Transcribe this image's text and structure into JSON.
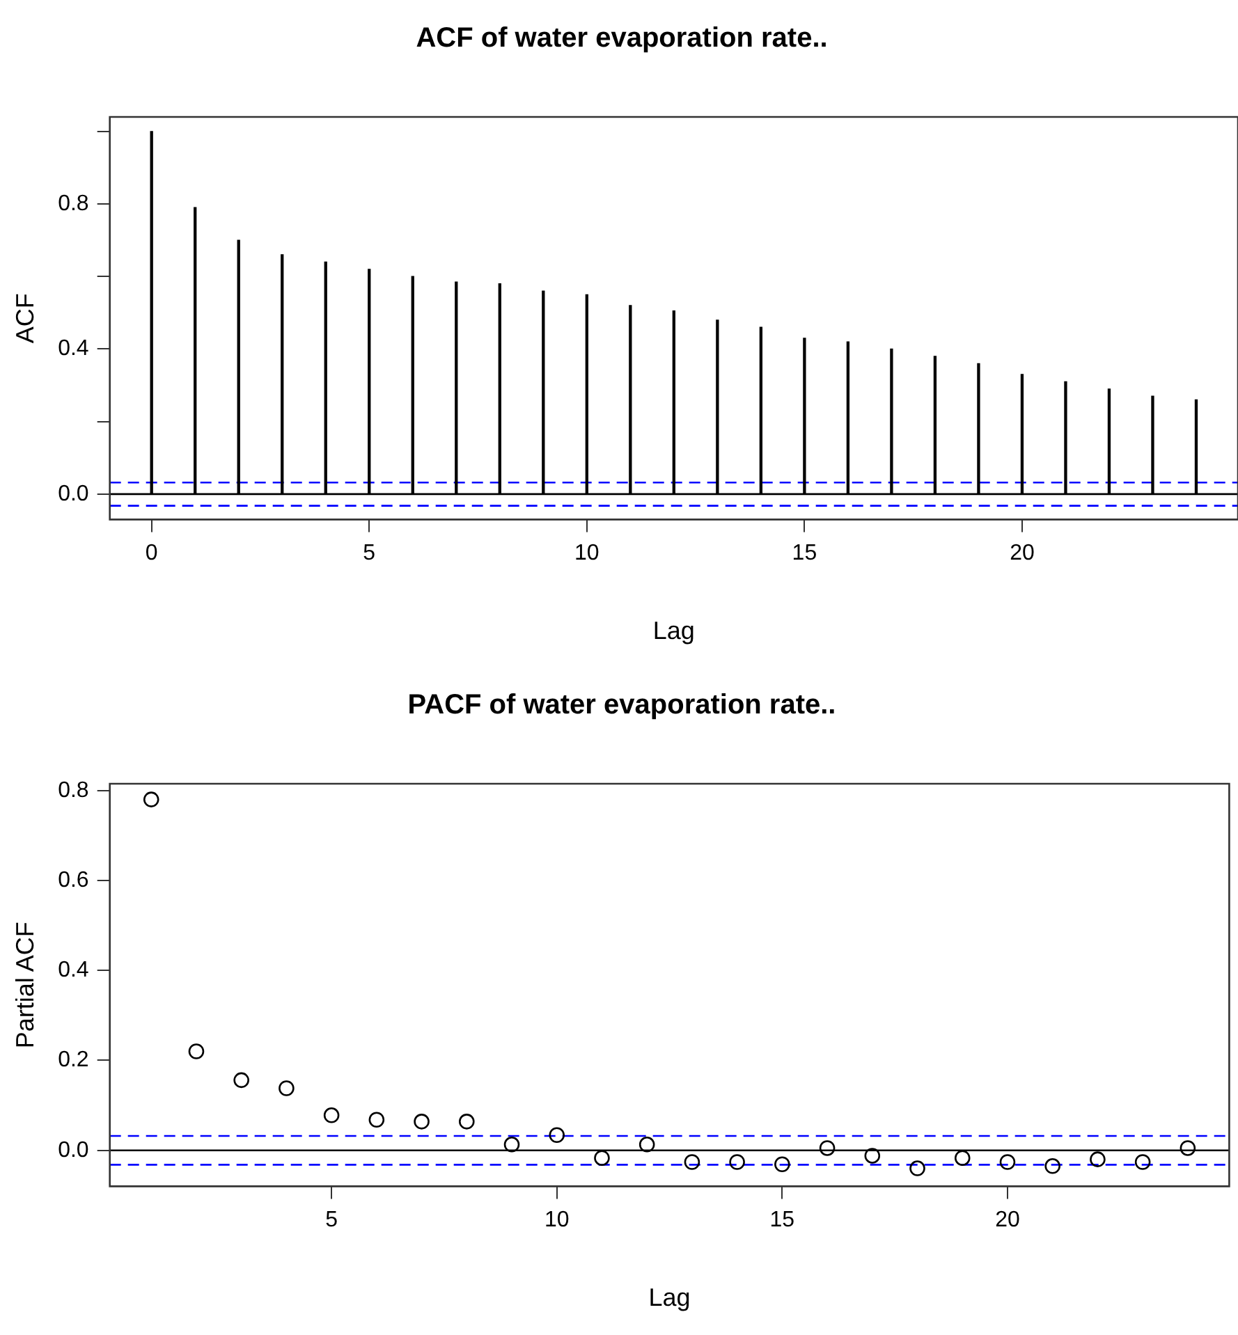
{
  "chart_data": [
    {
      "type": "bar",
      "title": "ACF of water evaporation rate..",
      "xlabel": "Lag",
      "ylabel": "ACF",
      "color": "#000000",
      "x": [
        0,
        1,
        2,
        3,
        4,
        5,
        6,
        7,
        8,
        9,
        10,
        11,
        12,
        13,
        14,
        15,
        16,
        17,
        18,
        19,
        20,
        21,
        22,
        23,
        24
      ],
      "values": [
        1.0,
        0.79,
        0.7,
        0.66,
        0.64,
        0.62,
        0.6,
        0.585,
        0.58,
        0.56,
        0.55,
        0.52,
        0.505,
        0.48,
        0.46,
        0.43,
        0.42,
        0.4,
        0.38,
        0.36,
        0.33,
        0.31,
        0.29,
        0.27,
        0.26
      ],
      "xlim": [
        -0.96,
        24.96
      ],
      "ylim": [
        -0.07,
        1.04
      ],
      "xticks": [
        0,
        5,
        10,
        15,
        20
      ],
      "yticks": [
        {
          "value": 0,
          "label": "0.0"
        },
        {
          "value": 0.2,
          "label": null
        },
        {
          "value": 0.4,
          "label": "0.4"
        },
        {
          "value": 0.6,
          "label": null
        },
        {
          "value": 0.8,
          "label": "0.8"
        },
        {
          "value": 1.0,
          "label": null
        }
      ],
      "ref_lines": [
        {
          "axis": "y",
          "value": 0,
          "color": "#000000",
          "line_style": "solid"
        },
        {
          "axis": "y",
          "value": 0.032,
          "color": "#0000ff",
          "line_style": "dashed"
        },
        {
          "axis": "y",
          "value": -0.032,
          "color": "#0000ff",
          "line_style": "dashed"
        }
      ],
      "grid": false,
      "legend": false
    },
    {
      "type": "scatter",
      "title": "PACF of water evaporation rate..",
      "xlabel": "Lag",
      "ylabel": "Partial ACF",
      "color": "#000000",
      "marker": "circle",
      "x": [
        1,
        2,
        3,
        4,
        5,
        6,
        7,
        8,
        9,
        10,
        11,
        12,
        13,
        14,
        15,
        16,
        17,
        18,
        19,
        20,
        21,
        22,
        23,
        24
      ],
      "values": [
        0.78,
        0.22,
        0.156,
        0.138,
        0.078,
        0.068,
        0.064,
        0.064,
        0.013,
        0.034,
        -0.017,
        0.013,
        -0.026,
        -0.026,
        -0.031,
        0.005,
        -0.012,
        -0.04,
        -0.017,
        -0.026,
        -0.035,
        -0.02,
        -0.026,
        0.005
      ],
      "xlim": [
        0.08,
        24.92
      ],
      "ylim": [
        -0.08,
        0.815
      ],
      "xticks": [
        5,
        10,
        15,
        20
      ],
      "yticks": [
        {
          "value": 0,
          "label": "0.0"
        },
        {
          "value": 0.2,
          "label": "0.2"
        },
        {
          "value": 0.4,
          "label": "0.4"
        },
        {
          "value": 0.6,
          "label": "0.6"
        },
        {
          "value": 0.8,
          "label": "0.8"
        }
      ],
      "ref_lines": [
        {
          "axis": "y",
          "value": 0,
          "color": "#000000",
          "line_style": "solid"
        },
        {
          "axis": "y",
          "value": 0.032,
          "color": "#0000ff",
          "line_style": "dashed"
        },
        {
          "axis": "y",
          "value": -0.032,
          "color": "#0000ff",
          "line_style": "dashed"
        }
      ],
      "grid": false,
      "legend": false
    }
  ]
}
